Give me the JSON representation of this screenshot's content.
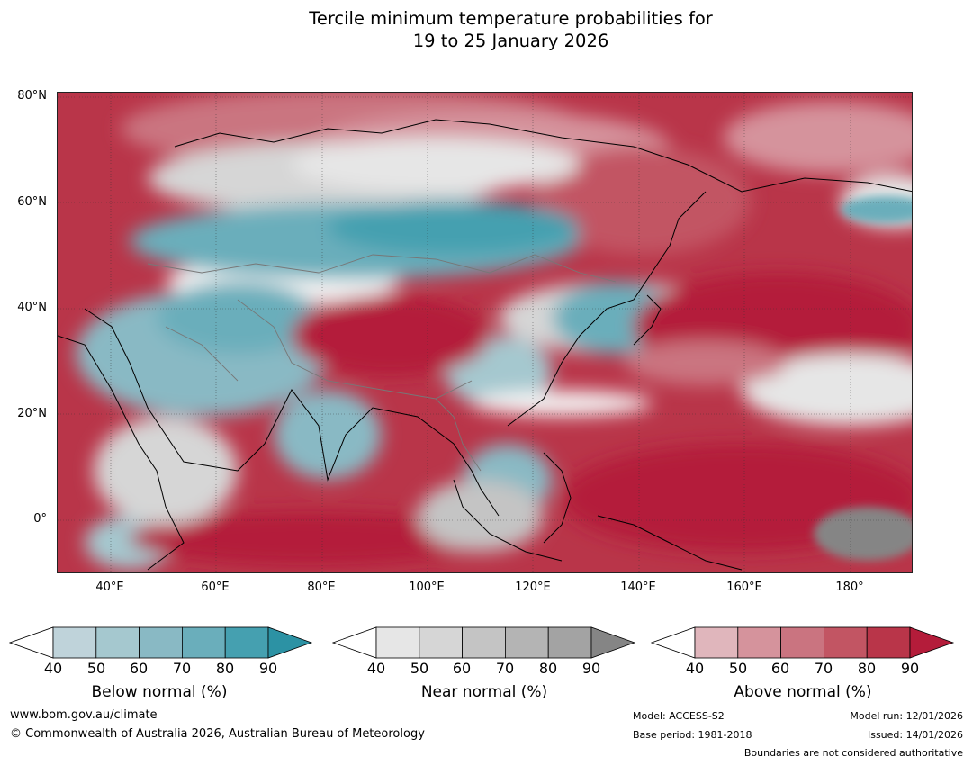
{
  "title": {
    "line1": "Tercile minimum temperature probabilities for",
    "line2": "19 to 25 January 2026"
  },
  "map": {
    "lat_labels": [
      "80°N",
      "60°N",
      "40°N",
      "20°N",
      "0°"
    ],
    "lon_labels": [
      "40°E",
      "60°E",
      "80°E",
      "100°E",
      "120°E",
      "140°E",
      "160°E",
      "180°"
    ],
    "lon_range_deg": [
      30,
      192
    ],
    "lat_range_deg": [
      -10,
      81
    ]
  },
  "colorbars": [
    {
      "label": "Below normal (%)",
      "ticks": [
        "40",
        "50",
        "60",
        "70",
        "80",
        "90"
      ],
      "colors": [
        "#ffffff",
        "#bfd3da",
        "#a5c8cf",
        "#89b9c4",
        "#6aaebb",
        "#45a0b0",
        "#2c92a4"
      ]
    },
    {
      "label": "Near normal (%)",
      "ticks": [
        "40",
        "50",
        "60",
        "70",
        "80",
        "90"
      ],
      "colors": [
        "#ffffff",
        "#e6e6e6",
        "#d6d6d6",
        "#c4c4c4",
        "#b4b4b4",
        "#a3a3a3",
        "#858585"
      ]
    },
    {
      "label": "Above normal (%)",
      "ticks": [
        "40",
        "50",
        "60",
        "70",
        "80",
        "90"
      ],
      "colors": [
        "#ffffff",
        "#e0b6bc",
        "#d5939c",
        "#ca7480",
        "#c25563",
        "#b93549",
        "#b41c3a"
      ]
    }
  ],
  "footer": {
    "website": "www.bom.gov.au/climate",
    "copyright": "© Commonwealth of Australia 2026, Australian Bureau of Meteorology",
    "model": "Model: ACCESS-S2",
    "base_period": "Base period: 1981-2018",
    "model_run": "Model run: 12/01/2026",
    "issued": "Issued: 14/01/2026",
    "boundaries": "Boundaries are not considered authoritative"
  }
}
